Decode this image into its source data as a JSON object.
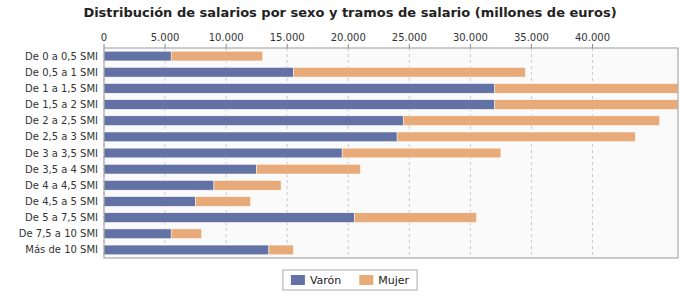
{
  "chart_data": {
    "type": "bar",
    "orientation": "horizontal",
    "stacked": true,
    "title": "Distribución de salarios por sexo y tramos de salario (millones de euros)",
    "categories": [
      "De 0 a 0,5 SMI",
      "De 0,5 a 1 SMI",
      "De 1 a 1,5 SMI",
      "De 1,5 a 2 SMI",
      "De 2 a 2,5 SMI",
      "De 2,5 a 3 SMI",
      "De 3 a 3,5 SMI",
      "De 3,5 a 4 SMI",
      "De 4 a 4,5 SMI",
      "De 4,5 a 5 SMI",
      "De 5 a 7,5 SMI",
      "De 7,5 a 10 SMI",
      "Más de 10 SMI"
    ],
    "series": [
      {
        "name": "Varón",
        "color": "#6272a4",
        "values": [
          5500,
          15500,
          32000,
          32000,
          24500,
          24000,
          19500,
          12500,
          9000,
          7500,
          20500,
          5500,
          13500
        ]
      },
      {
        "name": "Mujer",
        "color": "#e8aa78",
        "values": [
          7500,
          19000,
          15000,
          15000,
          21000,
          19500,
          13000,
          8500,
          5500,
          4500,
          10000,
          2500,
          2000
        ]
      }
    ],
    "xlim": [
      0,
      47000
    ],
    "xticks": [
      0,
      {
        "value": 5000,
        "label": "5.000"
      },
      {
        "value": 10000,
        "label": "10.000"
      },
      {
        "value": 15000,
        "label": "15.000"
      },
      {
        "value": 20000,
        "label": "20.000"
      },
      {
        "value": 25000,
        "label": "25.000"
      },
      {
        "value": 30000,
        "label": "30.000"
      },
      {
        "value": 35000,
        "label": "35.000"
      },
      {
        "value": 40000,
        "label": "40.000"
      }
    ],
    "grid": true,
    "legend": "bottom"
  }
}
